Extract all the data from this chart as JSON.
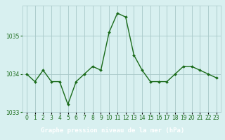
{
  "hours": [
    0,
    1,
    2,
    3,
    4,
    5,
    6,
    7,
    8,
    9,
    10,
    11,
    12,
    13,
    14,
    15,
    16,
    17,
    18,
    19,
    20,
    21,
    22,
    23
  ],
  "pressure": [
    1034.0,
    1033.8,
    1034.1,
    1033.8,
    1033.8,
    1033.2,
    1033.8,
    1034.0,
    1034.2,
    1034.1,
    1035.1,
    1035.6,
    1035.5,
    1034.5,
    1034.1,
    1033.8,
    1033.8,
    1033.8,
    1034.0,
    1034.2,
    1034.2,
    1034.1,
    1034.0,
    1033.9
  ],
  "line_color": "#1a6b1a",
  "marker": "D",
  "marker_size": 2.0,
  "bg_color": "#d8f0f0",
  "grid_color": "#a8c8c8",
  "title": "Graphe pression niveau de la mer (hPa)",
  "title_bg": "#2d6b2d",
  "title_fg": "#ffffff",
  "ylim": [
    1033.0,
    1035.8
  ],
  "yticks": [
    1033,
    1034,
    1035
  ],
  "xlim": [
    -0.5,
    23.5
  ],
  "tick_fontsize": 5.5,
  "title_fontsize": 6.5,
  "line_width": 1.0
}
